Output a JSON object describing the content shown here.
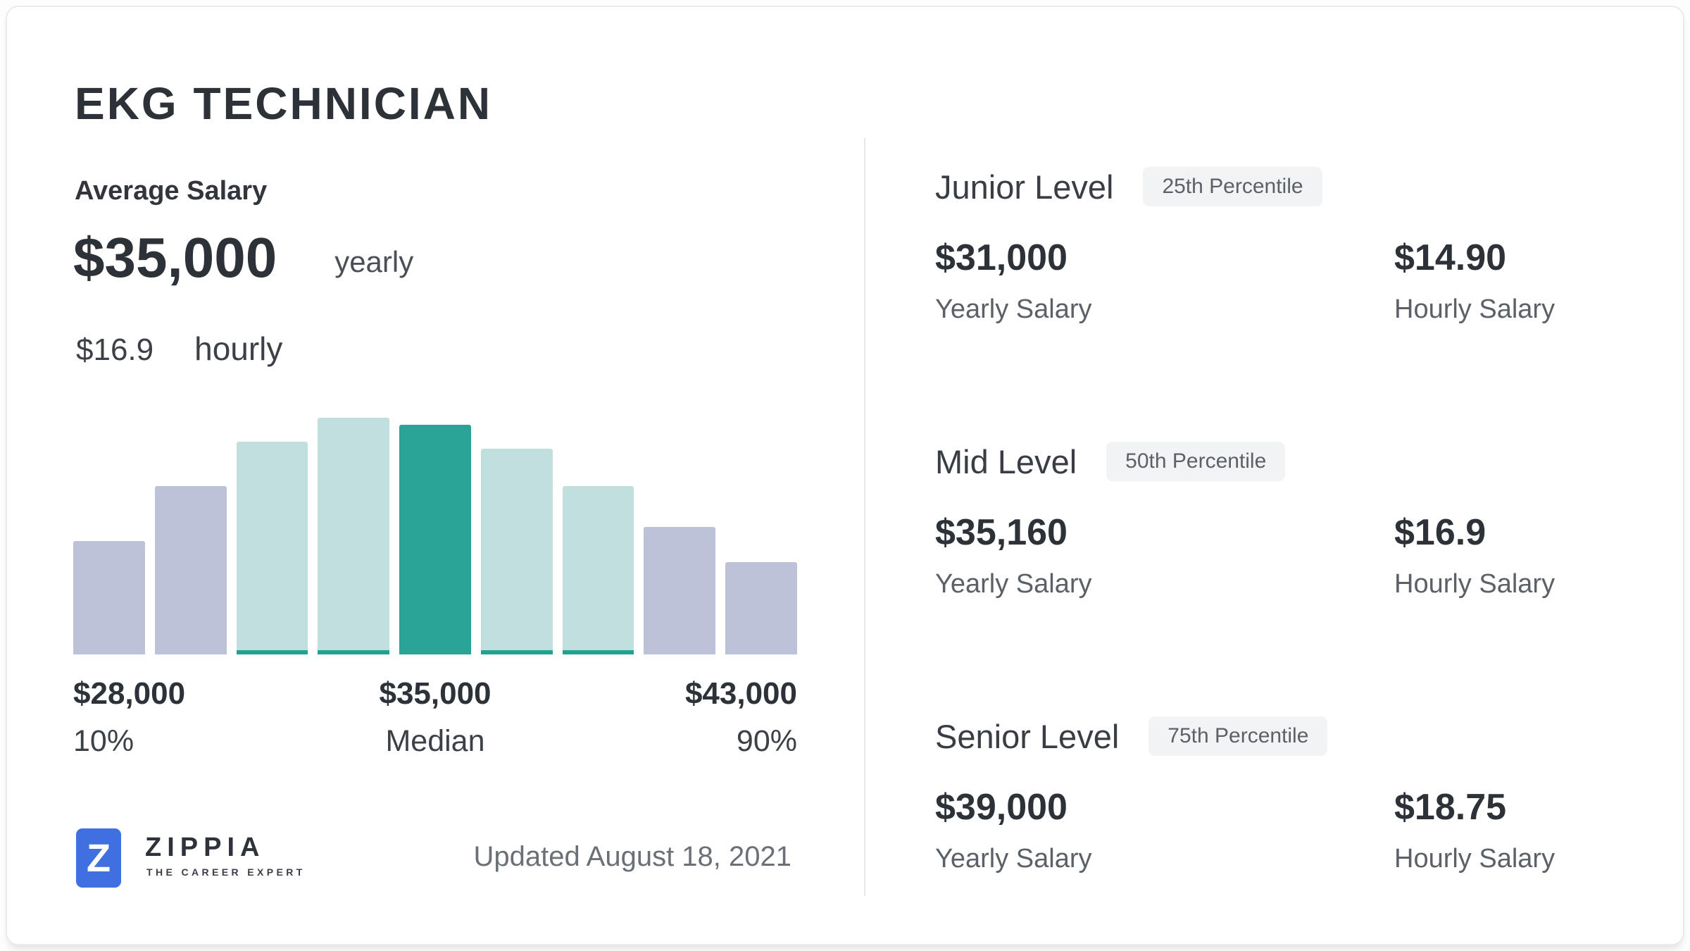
{
  "header": {
    "title": "EKG TECHNICIAN"
  },
  "average": {
    "label": "Average Salary",
    "yearly_value": "$35,000",
    "yearly_unit": "yearly",
    "hourly_value": "$16.9",
    "hourly_unit": "hourly"
  },
  "chart_data": {
    "type": "bar",
    "title": "Salary distribution histogram",
    "categories": [
      "b1",
      "b2",
      "b3",
      "b4",
      "b5",
      "b6",
      "b7",
      "b8",
      "b9"
    ],
    "values_rel_height_pct": [
      48,
      71,
      90,
      100,
      97,
      87,
      71,
      54,
      39
    ],
    "bar_color_keys": [
      "gray",
      "gray",
      "light_teal",
      "light_teal",
      "dark_teal",
      "light_teal",
      "light_teal",
      "gray",
      "gray"
    ],
    "bar_bottom_stripe": [
      false,
      false,
      true,
      true,
      false,
      true,
      true,
      false,
      false
    ],
    "xlabel": "",
    "ylabel": "",
    "grid": false,
    "legend": false,
    "x_annotations": [
      {
        "value": "$28,000",
        "caption": "10%"
      },
      {
        "value": "$35,000",
        "caption": "Median"
      },
      {
        "value": "$43,000",
        "caption": "90%"
      }
    ],
    "key_stats": {
      "p10_yearly": 28000,
      "median_yearly": 35000,
      "p90_yearly": 43000
    }
  },
  "colors": {
    "bar_gray": "#bcc3d8",
    "bar_light_teal": "#c1dfdd",
    "bar_dark_teal": "#2aa496",
    "bar_stripe": "#1ea392",
    "brand_blue": "#3f6fe0",
    "text_dark": "#2d3138",
    "text_gray": "#5c6167"
  },
  "levels": [
    {
      "title": "Junior Level",
      "badge": "25th Percentile",
      "yearly_value": "$31,000",
      "yearly_label": "Yearly Salary",
      "hourly_value": "$14.90",
      "hourly_label": "Hourly Salary"
    },
    {
      "title": "Mid Level",
      "badge": "50th Percentile",
      "yearly_value": "$35,160",
      "yearly_label": "Yearly Salary",
      "hourly_value": "$16.9",
      "hourly_label": "Hourly Salary"
    },
    {
      "title": "Senior Level",
      "badge": "75th Percentile",
      "yearly_value": "$39,000",
      "yearly_label": "Yearly Salary",
      "hourly_value": "$18.75",
      "hourly_label": "Hourly Salary"
    }
  ],
  "footer": {
    "logo_letter": "Z",
    "logo_text": "ZIPPIA",
    "logo_tagline": "THE CAREER EXPERT",
    "updated": "Updated August 18, 2021"
  }
}
